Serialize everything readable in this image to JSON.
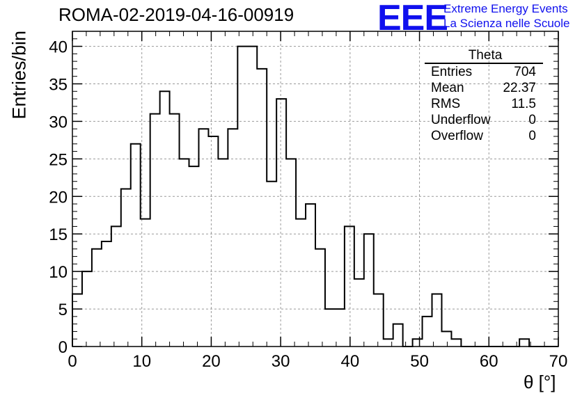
{
  "chart_data": {
    "type": "histogram",
    "title": "ROMA-02-2019-04-16-00919",
    "xlabel": "θ [°]",
    "ylabel": "Entries/bin",
    "xlim": [
      0,
      70
    ],
    "ylim": [
      0,
      42
    ],
    "grid": true,
    "bin_width": 1.4,
    "x_ticks": [
      0,
      10,
      20,
      30,
      40,
      50,
      60,
      70
    ],
    "y_ticks": [
      0,
      5,
      10,
      15,
      20,
      25,
      30,
      35,
      40
    ],
    "values": [
      7,
      10,
      13,
      14,
      16,
      21,
      27,
      17,
      31,
      34,
      31,
      25,
      24,
      29,
      28,
      25,
      29,
      40,
      40,
      37,
      22,
      33,
      25,
      17,
      19,
      13,
      5,
      5,
      16,
      9,
      15,
      7,
      1,
      3,
      0,
      1,
      4,
      7,
      2,
      1,
      0,
      0,
      0,
      0,
      0,
      0,
      1,
      0,
      0,
      0
    ],
    "legend_position": "top-right"
  },
  "stats": {
    "name": "Theta",
    "rows": [
      {
        "label": "Entries",
        "value": "704"
      },
      {
        "label": "Mean",
        "value": "22.37"
      },
      {
        "label": "RMS",
        "value": "11.5"
      },
      {
        "label": "Underflow",
        "value": "0"
      },
      {
        "label": "Overflow",
        "value": "0"
      }
    ]
  },
  "logo": {
    "mark": "EEE",
    "line1": "Extreme Energy Events",
    "line2": "La Scienza nelle Scuole",
    "color": "#1010ee"
  }
}
